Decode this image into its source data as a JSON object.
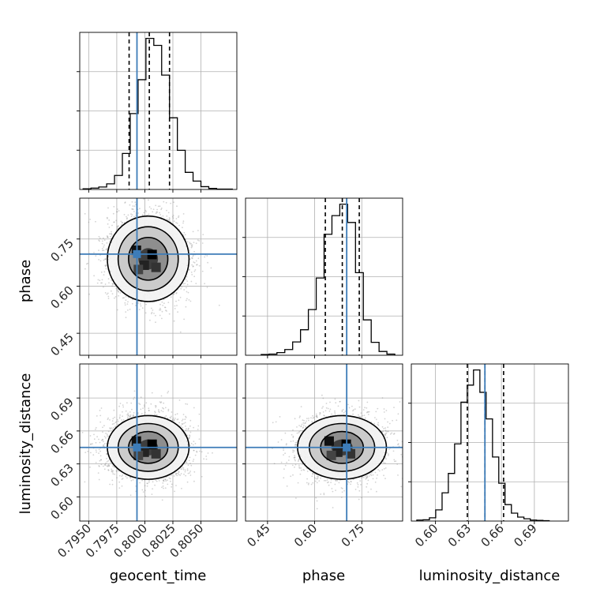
{
  "chart_data": {
    "type": "corner",
    "parameters": [
      "geocent_time",
      "phase",
      "luminosity_distance"
    ],
    "colors": {
      "truth": "#3d7cb8",
      "hist": "#000000",
      "grid": "#b0b0b0",
      "samples": "#808080"
    },
    "grid": true,
    "axes": {
      "geocent_time": {
        "range": [
          0.7942,
          0.8082
        ],
        "ticks": [
          0.795,
          0.7975,
          0.8,
          0.8025,
          0.805
        ],
        "tick_labels": [
          "0.7950",
          "0.7975",
          "0.8000",
          "0.8025",
          "0.8050"
        ]
      },
      "phase": {
        "range": [
          0.38,
          0.88
        ],
        "ticks": [
          0.45,
          0.6,
          0.75
        ],
        "tick_labels": [
          "0.45",
          "0.60",
          "0.75"
        ]
      },
      "luminosity_distance": {
        "range": [
          0.578,
          0.721
        ],
        "ticks": [
          0.6,
          0.63,
          0.66,
          0.69
        ],
        "tick_labels": [
          "0.60",
          "0.63",
          "0.66",
          "0.69"
        ]
      }
    },
    "truths": {
      "geocent_time": 0.7993,
      "phase": 0.702,
      "luminosity_distance": 0.645
    },
    "quantiles": {
      "geocent_time": [
        0.7986,
        0.8004,
        0.8022
      ],
      "phase": [
        0.634,
        0.688,
        0.742
      ],
      "luminosity_distance": [
        0.629,
        0.645,
        0.662
      ]
    },
    "marginals": {
      "geocent_time": {
        "edges": [
          0.7945,
          0.7952,
          0.7959,
          0.7966,
          0.7973,
          0.798,
          0.7987,
          0.7994,
          0.8001,
          0.8008,
          0.8015,
          0.8022,
          0.8029,
          0.8036,
          0.8043,
          0.805,
          0.8057,
          0.8064,
          0.8071,
          0.8078
        ],
        "counts": [
          2,
          4,
          7,
          16,
          40,
          103,
          217,
          314,
          432,
          412,
          327,
          205,
          112,
          49,
          24,
          8,
          3,
          1,
          1
        ]
      },
      "phase": {
        "edges": [
          0.43,
          0.455,
          0.48,
          0.505,
          0.53,
          0.555,
          0.58,
          0.605,
          0.63,
          0.655,
          0.68,
          0.705,
          0.73,
          0.755,
          0.78,
          0.805,
          0.83,
          0.855
        ],
        "counts": [
          2,
          3,
          7,
          15,
          35,
          67,
          120,
          203,
          318,
          367,
          397,
          349,
          217,
          93,
          34,
          10,
          3
        ]
      },
      "luminosity_distance": {
        "edges": [
          0.583,
          0.5887,
          0.5945,
          0.6002,
          0.606,
          0.6117,
          0.6174,
          0.6232,
          0.6289,
          0.6346,
          0.6404,
          0.6461,
          0.6519,
          0.6576,
          0.6633,
          0.6691,
          0.6748,
          0.6805,
          0.6863,
          0.692,
          0.6978,
          0.7035
        ],
        "counts": [
          3,
          4,
          10,
          34,
          86,
          145,
          235,
          362,
          414,
          460,
          392,
          311,
          195,
          115,
          50,
          24,
          12,
          7,
          3,
          2,
          1
        ]
      }
    },
    "joint_2d": [
      {
        "x": "geocent_time",
        "y": "phase",
        "mean": [
          0.8003,
          0.687
        ],
        "sigma": [
          0.00175,
          0.068
        ]
      },
      {
        "x": "geocent_time",
        "y": "luminosity_distance",
        "mean": [
          0.8003,
          0.645
        ],
        "sigma": [
          0.00175,
          0.0145
        ]
      },
      {
        "x": "phase",
        "y": "luminosity_distance",
        "mean": [
          0.687,
          0.645
        ],
        "sigma": [
          0.068,
          0.0145
        ]
      }
    ],
    "contour_levels": [
      0.5,
      1.0,
      1.5,
      2.0
    ],
    "samples_per_panel": 3000
  }
}
